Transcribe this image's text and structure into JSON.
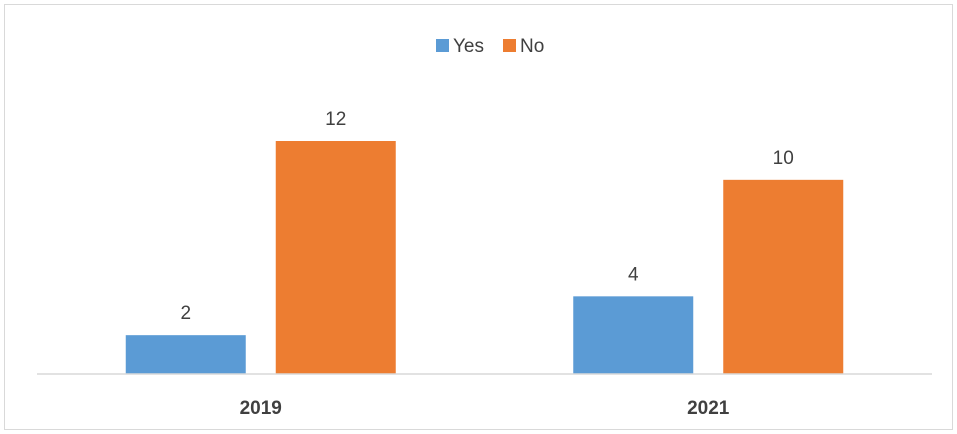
{
  "chart_data": {
    "type": "bar",
    "title": "",
    "xlabel": "",
    "ylabel": "",
    "categories": [
      "2019",
      "2021"
    ],
    "series": [
      {
        "name": "Yes",
        "values": [
          2,
          4
        ],
        "color": "#5b9bd5"
      },
      {
        "name": "No",
        "values": [
          12,
          10
        ],
        "color": "#ed7d31"
      }
    ],
    "ylim": [
      0,
      14
    ],
    "grid": false,
    "legend": "top-center",
    "axis_color": "#d9d9d9"
  }
}
